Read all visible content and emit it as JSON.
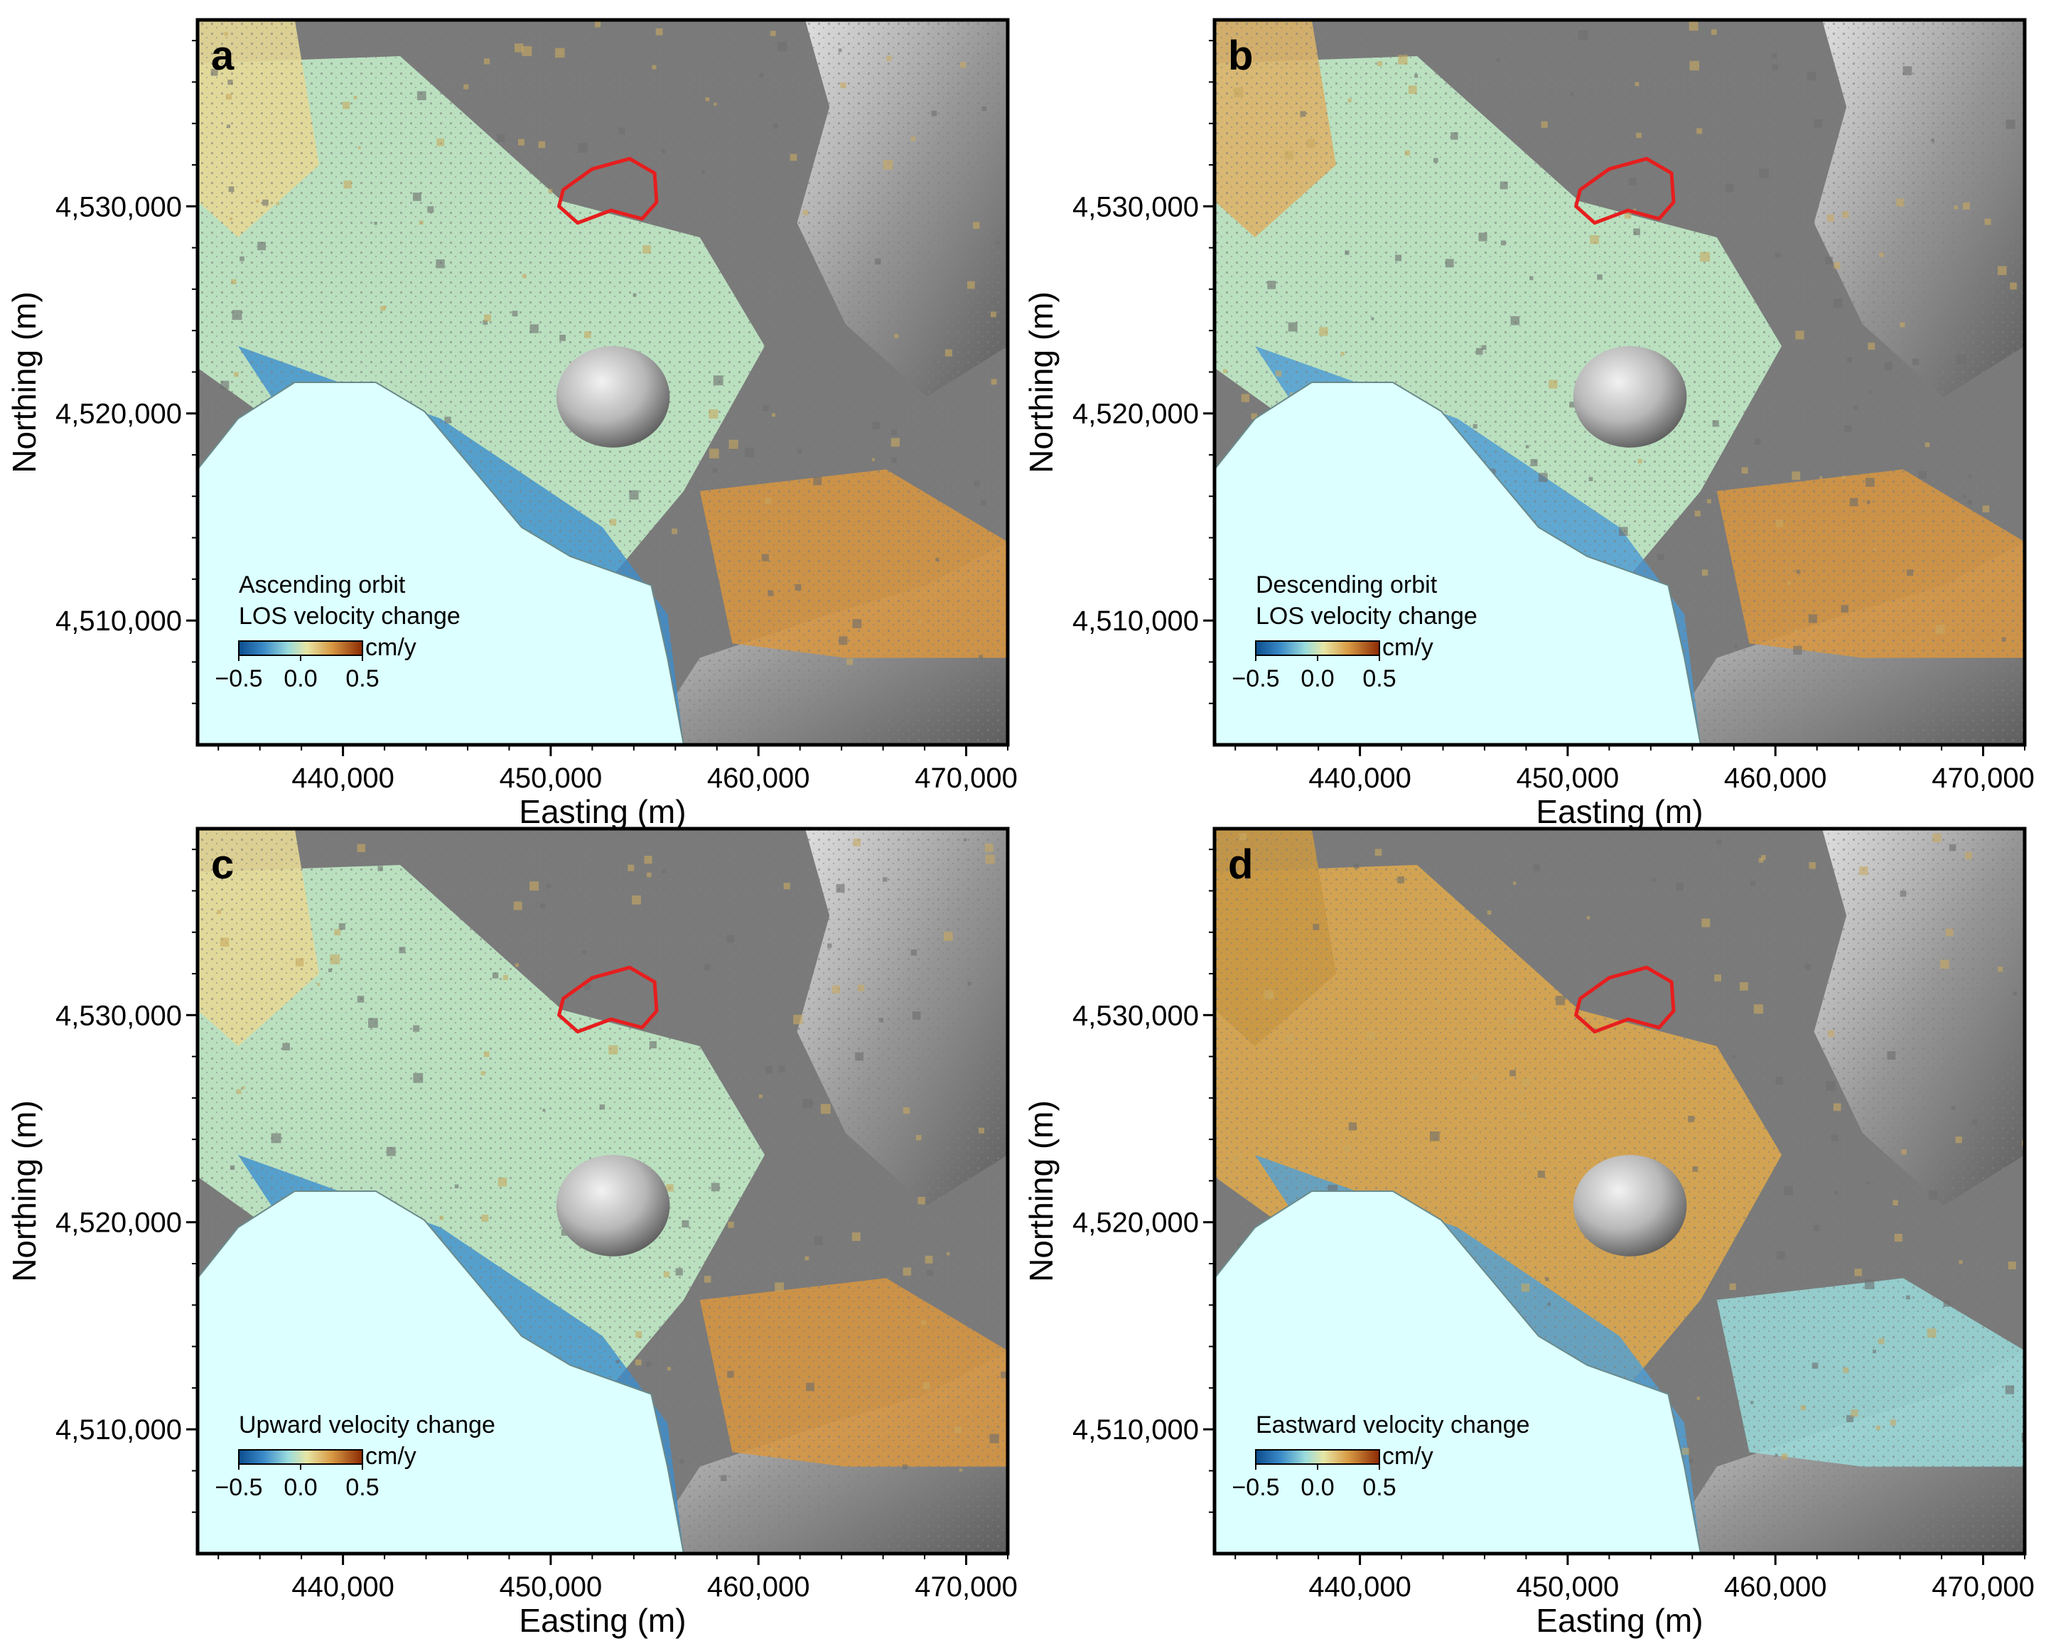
{
  "axes": {
    "x_label": "Easting (m)",
    "y_label": "Northing (m)",
    "x_ticks": [
      "440,000",
      "450,000",
      "460,000",
      "470,000"
    ],
    "y_ticks": [
      "4,510,000",
      "4,520,000",
      "4,530,000"
    ],
    "x_tick_values": [
      440000,
      450000,
      460000,
      470000
    ],
    "y_tick_values": [
      4510000,
      4520000,
      4530000
    ],
    "x_range": [
      433000,
      472000
    ],
    "y_range": [
      4504000,
      4539000
    ]
  },
  "colorbar": {
    "unit": "cm/y",
    "tick_labels": [
      "−0.5",
      "0.0",
      "0.5"
    ],
    "range": [
      -0.5,
      0.5
    ]
  },
  "colors": {
    "sea": "#dcffff",
    "mask_gray": "#7a7a7a",
    "outline_red": "#e61e1e",
    "cmap_low": "#0c4c8c",
    "cmap_mid": "#c7eec8",
    "cmap_high": "#8c2a04"
  },
  "panels": [
    {
      "letter": "a",
      "legend_lines": [
        "Ascending orbit",
        "LOS velocity change"
      ]
    },
    {
      "letter": "b",
      "legend_lines": [
        "Descending orbit",
        "LOS velocity change"
      ]
    },
    {
      "letter": "c",
      "legend_lines": [
        "Upward velocity change"
      ]
    },
    {
      "letter": "d",
      "legend_lines": [
        "Eastward velocity change"
      ]
    }
  ]
}
